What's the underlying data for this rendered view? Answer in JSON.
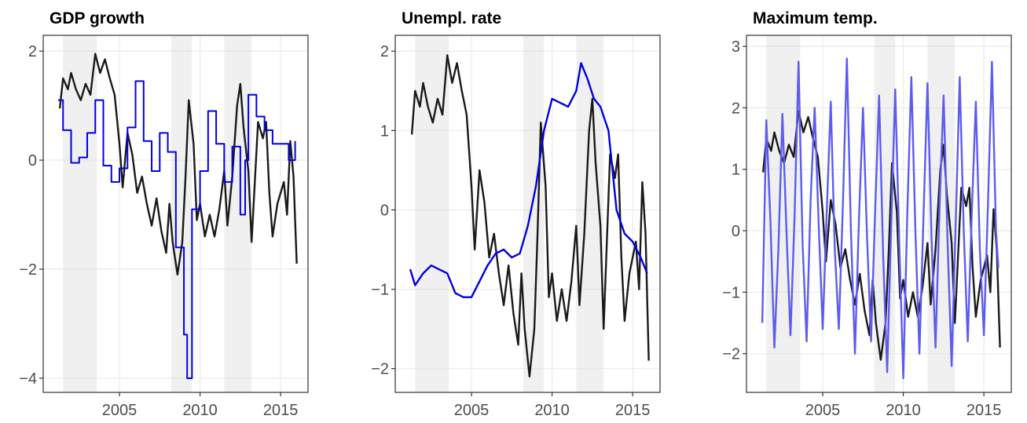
{
  "chart_data": [
    {
      "type": "line",
      "title": "GDP growth",
      "xlim": [
        2000.27,
        2016.7
      ],
      "xticks": [
        2005,
        2010,
        2015
      ],
      "ylim": [
        -4.26,
        2.29
      ],
      "yticks": [
        {
          "value": 2,
          "label": "2"
        },
        {
          "value": 0,
          "label": "0"
        },
        {
          "value": -2,
          "label": "−2"
        },
        {
          "value": -4,
          "label": "−4"
        }
      ],
      "grid": true,
      "shaded": [
        [
          2001.5,
          2003.6
        ],
        [
          2008.2,
          2009.5
        ],
        [
          2011.5,
          2013.2
        ]
      ],
      "series": [
        {
          "color": "#1a1a1a",
          "step": false,
          "x": [
            2001.3,
            2001.5,
            2001.8,
            2002.0,
            2002.3,
            2002.6,
            2002.9,
            2003.2,
            2003.5,
            2003.8,
            2004.1,
            2004.4,
            2004.7,
            2005.0,
            2005.2,
            2005.5,
            2005.8,
            2006.1,
            2006.4,
            2006.7,
            2007.0,
            2007.3,
            2007.6,
            2007.9,
            2008.1,
            2008.3,
            2008.6,
            2008.9,
            2009.1,
            2009.3,
            2009.6,
            2009.8,
            2010.0,
            2010.3,
            2010.6,
            2010.9,
            2011.2,
            2011.5,
            2011.7,
            2012.0,
            2012.3,
            2012.5,
            2012.7,
            2013.0,
            2013.2,
            2013.4,
            2013.6,
            2013.9,
            2014.1,
            2014.3,
            2014.5,
            2014.8,
            2015.0,
            2015.2,
            2015.4,
            2015.6,
            2015.8,
            2016.0
          ],
          "values": [
            0.95,
            1.5,
            1.3,
            1.6,
            1.3,
            1.1,
            1.4,
            1.2,
            1.95,
            1.6,
            1.85,
            1.5,
            1.2,
            0.3,
            -0.5,
            0.5,
            0.1,
            -0.6,
            -0.3,
            -0.8,
            -1.2,
            -0.7,
            -1.3,
            -1.7,
            -0.8,
            -1.5,
            -2.1,
            -1.5,
            -0.3,
            1.1,
            0.3,
            -1.1,
            -0.8,
            -1.4,
            -1.0,
            -1.4,
            -0.9,
            -0.2,
            -1.2,
            -0.3,
            1.0,
            1.4,
            0.6,
            -0.2,
            -1.5,
            -0.4,
            0.7,
            0.4,
            0.7,
            -0.6,
            -1.4,
            -0.8,
            -0.6,
            -0.4,
            -1.0,
            0.35,
            -0.3,
            -1.9
          ]
        },
        {
          "color": "#0000e6",
          "step": true,
          "x": [
            2001.2,
            2001.5,
            2002.0,
            2002.5,
            2003.0,
            2003.5,
            2004.0,
            2004.5,
            2005.0,
            2005.5,
            2006.0,
            2006.5,
            2007.0,
            2007.5,
            2008.0,
            2008.5,
            2009.0,
            2009.2,
            2009.5,
            2010.0,
            2010.5,
            2011.0,
            2011.5,
            2012.0,
            2012.5,
            2012.8,
            2013.0,
            2013.5,
            2014.0,
            2014.5,
            2015.0,
            2015.5,
            2015.9
          ],
          "values": [
            1.1,
            0.55,
            -0.05,
            0.05,
            0.5,
            1.1,
            -0.1,
            -0.4,
            -0.15,
            0.6,
            1.45,
            0.35,
            -0.2,
            0.5,
            0.15,
            -1.6,
            -3.2,
            -4.0,
            -0.9,
            -0.2,
            0.9,
            0.3,
            -0.4,
            0.25,
            -1.0,
            0.0,
            1.2,
            0.8,
            0.55,
            0.3,
            0.3,
            0.0,
            0.35
          ]
        }
      ]
    },
    {
      "type": "line",
      "title": "Unempl. rate",
      "xlim": [
        2000.27,
        2016.7
      ],
      "xticks": [
        2005,
        2010,
        2015
      ],
      "ylim": [
        -2.3,
        2.2
      ],
      "yticks": [
        {
          "value": 2,
          "label": "2"
        },
        {
          "value": 1,
          "label": "1"
        },
        {
          "value": 0,
          "label": "0"
        },
        {
          "value": -1,
          "label": "−1"
        },
        {
          "value": -2,
          "label": "−2"
        }
      ],
      "grid": true,
      "shaded": [
        [
          2001.5,
          2003.6
        ],
        [
          2008.2,
          2009.5
        ],
        [
          2011.5,
          2013.2
        ]
      ],
      "series": [
        {
          "color": "#1a1a1a",
          "step": false,
          "x": [
            2001.3,
            2001.5,
            2001.8,
            2002.0,
            2002.3,
            2002.6,
            2002.9,
            2003.2,
            2003.5,
            2003.8,
            2004.1,
            2004.4,
            2004.7,
            2005.0,
            2005.2,
            2005.5,
            2005.8,
            2006.1,
            2006.4,
            2006.7,
            2007.0,
            2007.3,
            2007.6,
            2007.9,
            2008.1,
            2008.3,
            2008.6,
            2008.9,
            2009.1,
            2009.3,
            2009.6,
            2009.8,
            2010.0,
            2010.3,
            2010.6,
            2010.9,
            2011.2,
            2011.5,
            2011.7,
            2012.0,
            2012.3,
            2012.5,
            2012.7,
            2013.0,
            2013.2,
            2013.4,
            2013.6,
            2013.9,
            2014.1,
            2014.3,
            2014.5,
            2014.8,
            2015.0,
            2015.2,
            2015.4,
            2015.6,
            2015.8,
            2016.0
          ],
          "values": [
            0.95,
            1.5,
            1.3,
            1.6,
            1.3,
            1.1,
            1.4,
            1.2,
            1.95,
            1.6,
            1.85,
            1.5,
            1.2,
            0.3,
            -0.5,
            0.5,
            0.1,
            -0.6,
            -0.3,
            -0.8,
            -1.2,
            -0.7,
            -1.3,
            -1.7,
            -0.8,
            -1.5,
            -2.1,
            -1.5,
            -0.3,
            1.1,
            0.3,
            -1.1,
            -0.8,
            -1.4,
            -1.0,
            -1.4,
            -0.9,
            -0.2,
            -1.2,
            -0.3,
            1.0,
            1.4,
            0.6,
            -0.2,
            -1.5,
            -0.4,
            0.7,
            0.4,
            0.7,
            -0.6,
            -1.4,
            -0.8,
            -0.6,
            -0.4,
            -1.0,
            0.35,
            -0.3,
            -1.9
          ]
        },
        {
          "color": "#0000e6",
          "step": false,
          "x": [
            2001.2,
            2001.5,
            2002.0,
            2002.5,
            2003.0,
            2003.5,
            2004.0,
            2004.5,
            2005.0,
            2005.5,
            2006.0,
            2006.5,
            2007.0,
            2007.5,
            2008.0,
            2008.5,
            2009.0,
            2009.5,
            2010.0,
            2010.5,
            2011.0,
            2011.5,
            2011.8,
            2012.2,
            2012.6,
            2013.0,
            2013.5,
            2014.0,
            2014.5,
            2015.0,
            2015.5,
            2015.9
          ],
          "values": [
            -0.75,
            -0.95,
            -0.8,
            -0.7,
            -0.75,
            -0.8,
            -1.05,
            -1.1,
            -1.1,
            -0.9,
            -0.7,
            -0.55,
            -0.5,
            -0.6,
            -0.55,
            -0.2,
            0.3,
            1.0,
            1.4,
            1.35,
            1.3,
            1.5,
            1.85,
            1.65,
            1.4,
            1.3,
            1.0,
            0.0,
            -0.3,
            -0.4,
            -0.6,
            -0.8
          ]
        }
      ]
    },
    {
      "type": "line",
      "title": "Maximum temp.",
      "xlim": [
        2000.27,
        2016.7
      ],
      "xticks": [
        2005,
        2010,
        2015
      ],
      "ylim": [
        -2.63,
        3.18
      ],
      "yticks": [
        {
          "value": 3,
          "label": "3"
        },
        {
          "value": 2,
          "label": "2"
        },
        {
          "value": 1,
          "label": "1"
        },
        {
          "value": 0,
          "label": "0"
        },
        {
          "value": -1,
          "label": "−1"
        },
        {
          "value": -2,
          "label": "−2"
        }
      ],
      "grid": true,
      "shaded": [
        [
          2001.5,
          2003.6
        ],
        [
          2008.2,
          2009.5
        ],
        [
          2011.5,
          2013.2
        ]
      ],
      "series": [
        {
          "color": "#1a1a1a",
          "step": false,
          "x": [
            2001.3,
            2001.5,
            2001.8,
            2002.0,
            2002.3,
            2002.6,
            2002.9,
            2003.2,
            2003.5,
            2003.8,
            2004.1,
            2004.4,
            2004.7,
            2005.0,
            2005.2,
            2005.5,
            2005.8,
            2006.1,
            2006.4,
            2006.7,
            2007.0,
            2007.3,
            2007.6,
            2007.9,
            2008.1,
            2008.3,
            2008.6,
            2008.9,
            2009.1,
            2009.3,
            2009.6,
            2009.8,
            2010.0,
            2010.3,
            2010.6,
            2010.9,
            2011.2,
            2011.5,
            2011.7,
            2012.0,
            2012.3,
            2012.5,
            2012.7,
            2013.0,
            2013.2,
            2013.4,
            2013.6,
            2013.9,
            2014.1,
            2014.3,
            2014.5,
            2014.8,
            2015.0,
            2015.2,
            2015.4,
            2015.6,
            2015.8,
            2016.0
          ],
          "values": [
            0.95,
            1.5,
            1.3,
            1.6,
            1.3,
            1.1,
            1.4,
            1.2,
            1.95,
            1.6,
            1.85,
            1.5,
            1.2,
            0.3,
            -0.5,
            0.5,
            0.1,
            -0.6,
            -0.3,
            -0.8,
            -1.2,
            -0.7,
            -1.3,
            -1.7,
            -0.8,
            -1.5,
            -2.1,
            -1.5,
            -0.3,
            1.1,
            0.3,
            -1.1,
            -0.8,
            -1.4,
            -1.0,
            -1.4,
            -0.9,
            -0.2,
            -1.2,
            -0.3,
            1.0,
            1.4,
            0.6,
            -0.2,
            -1.5,
            -0.4,
            0.7,
            0.4,
            0.7,
            -0.6,
            -1.4,
            -0.8,
            -0.6,
            -0.4,
            -1.0,
            0.35,
            -0.3,
            -1.9
          ]
        },
        {
          "color": "#5c5cf0",
          "step": false,
          "x": [
            2001.25,
            2001.5,
            2001.75,
            2002.0,
            2002.25,
            2002.5,
            2002.75,
            2003.0,
            2003.25,
            2003.5,
            2003.75,
            2004.0,
            2004.25,
            2004.5,
            2004.75,
            2005.0,
            2005.25,
            2005.5,
            2005.75,
            2006.0,
            2006.25,
            2006.5,
            2006.75,
            2007.0,
            2007.25,
            2007.5,
            2007.75,
            2008.0,
            2008.25,
            2008.5,
            2008.75,
            2009.0,
            2009.25,
            2009.5,
            2009.75,
            2010.0,
            2010.25,
            2010.5,
            2010.75,
            2011.0,
            2011.25,
            2011.5,
            2011.75,
            2012.0,
            2012.25,
            2012.5,
            2012.75,
            2013.0,
            2013.25,
            2013.5,
            2013.75,
            2014.0,
            2014.25,
            2014.5,
            2014.75,
            2015.0,
            2015.25,
            2015.5,
            2015.75,
            2015.9
          ],
          "values": [
            -1.5,
            1.8,
            0.2,
            -1.9,
            -0.3,
            1.9,
            0.0,
            -1.7,
            0.2,
            2.75,
            -0.2,
            -1.8,
            0.5,
            2.0,
            0.1,
            -1.6,
            0.3,
            2.1,
            -0.3,
            -1.6,
            0.4,
            2.8,
            0.0,
            -2.0,
            0.2,
            2.0,
            -0.1,
            -1.8,
            0.3,
            2.2,
            -0.4,
            -2.3,
            0.1,
            2.3,
            -0.2,
            -2.4,
            0.3,
            2.5,
            0.0,
            -2.0,
            0.2,
            2.4,
            -0.1,
            -1.9,
            0.4,
            2.2,
            -0.2,
            -2.2,
            0.1,
            2.5,
            0.0,
            -1.8,
            0.3,
            2.1,
            -0.3,
            -1.7,
            0.4,
            2.75,
            0.0,
            -0.6
          ]
        }
      ]
    }
  ]
}
